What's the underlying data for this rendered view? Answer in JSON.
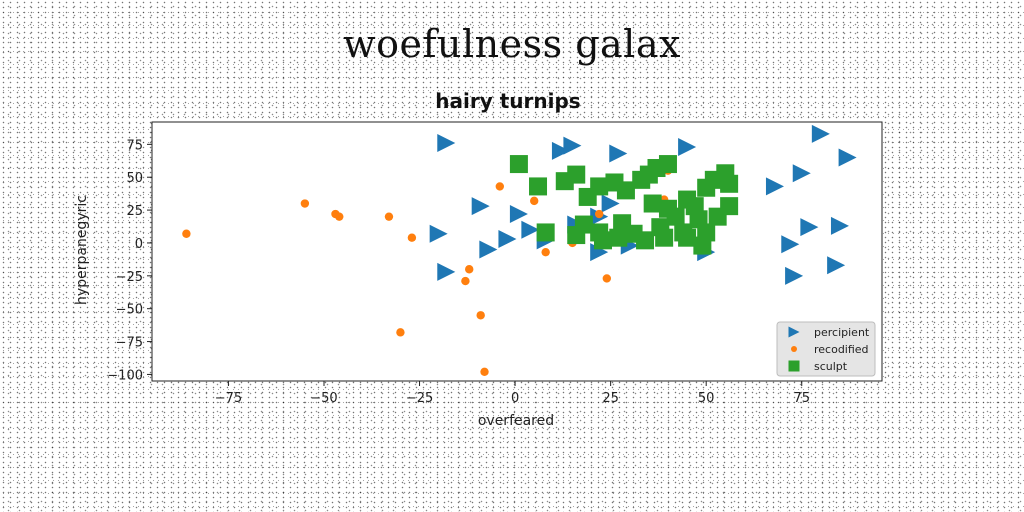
{
  "page_title": "woefulness galax",
  "chart_data": {
    "type": "scatter",
    "title": "hairy turnips",
    "xlabel": "overfeared",
    "ylabel": "hyperpanegyric",
    "xlim": [
      -95,
      96
    ],
    "ylim": [
      -105,
      92
    ],
    "xticks": [
      -75,
      -50,
      -25,
      0,
      25,
      50,
      75
    ],
    "yticks": [
      75,
      50,
      25,
      0,
      -25,
      -50,
      -75,
      -100
    ],
    "grid": false,
    "legend_position": "bottom-right",
    "series": [
      {
        "name": "percipient",
        "marker": "triangle-right",
        "color": "#1f77b4",
        "points": [
          [
            -18,
            76
          ],
          [
            12,
            70
          ],
          [
            15,
            74
          ],
          [
            27,
            68
          ],
          [
            45,
            73
          ],
          [
            80,
            83
          ],
          [
            87,
            65
          ],
          [
            75,
            53
          ],
          [
            68,
            43
          ],
          [
            38,
            55
          ],
          [
            -9,
            28
          ],
          [
            1,
            22
          ],
          [
            4,
            10
          ],
          [
            8,
            2
          ],
          [
            -20,
            7
          ],
          [
            -7,
            -5
          ],
          [
            -2,
            3
          ],
          [
            16,
            14
          ],
          [
            22,
            20
          ],
          [
            25,
            30
          ],
          [
            30,
            -2
          ],
          [
            22,
            -7
          ],
          [
            -18,
            -22
          ],
          [
            50,
            -7
          ],
          [
            72,
            -1
          ],
          [
            73,
            -25
          ],
          [
            84,
            -17
          ],
          [
            77,
            12
          ],
          [
            85,
            13
          ]
        ]
      },
      {
        "name": "recodified",
        "marker": "circle",
        "color": "#ff7f0e",
        "points": [
          [
            -86,
            7
          ],
          [
            -55,
            30
          ],
          [
            -47,
            22
          ],
          [
            -46,
            20
          ],
          [
            -33,
            20
          ],
          [
            -27,
            4
          ],
          [
            -12,
            -20
          ],
          [
            -13,
            -29
          ],
          [
            -30,
            -68
          ],
          [
            -9,
            -55
          ],
          [
            -8,
            -98
          ],
          [
            -4,
            43
          ],
          [
            5,
            32
          ],
          [
            8,
            -7
          ],
          [
            15,
            0
          ],
          [
            24,
            -27
          ],
          [
            40,
            55
          ],
          [
            39,
            33
          ],
          [
            22,
            22
          ]
        ]
      },
      {
        "name": "sculpt",
        "marker": "square",
        "color": "#2ca02c",
        "points": [
          [
            1,
            60
          ],
          [
            6,
            43
          ],
          [
            13,
            47
          ],
          [
            16,
            52
          ],
          [
            19,
            35
          ],
          [
            22,
            43
          ],
          [
            26,
            46
          ],
          [
            29,
            40
          ],
          [
            33,
            48
          ],
          [
            35,
            52
          ],
          [
            37,
            57
          ],
          [
            40,
            60
          ],
          [
            36,
            30
          ],
          [
            40,
            26
          ],
          [
            45,
            33
          ],
          [
            47,
            28
          ],
          [
            50,
            42
          ],
          [
            52,
            48
          ],
          [
            55,
            53
          ],
          [
            56,
            45
          ],
          [
            56,
            28
          ],
          [
            48,
            18
          ],
          [
            53,
            20
          ],
          [
            42,
            20
          ],
          [
            44,
            8
          ],
          [
            39,
            4
          ],
          [
            34,
            2
          ],
          [
            31,
            7
          ],
          [
            27,
            4
          ],
          [
            22,
            8
          ],
          [
            18,
            14
          ],
          [
            23,
            2
          ],
          [
            16,
            6
          ],
          [
            8,
            8
          ],
          [
            28,
            15
          ],
          [
            38,
            12
          ],
          [
            49,
            -2
          ],
          [
            50,
            8
          ],
          [
            45,
            4
          ]
        ]
      }
    ]
  }
}
